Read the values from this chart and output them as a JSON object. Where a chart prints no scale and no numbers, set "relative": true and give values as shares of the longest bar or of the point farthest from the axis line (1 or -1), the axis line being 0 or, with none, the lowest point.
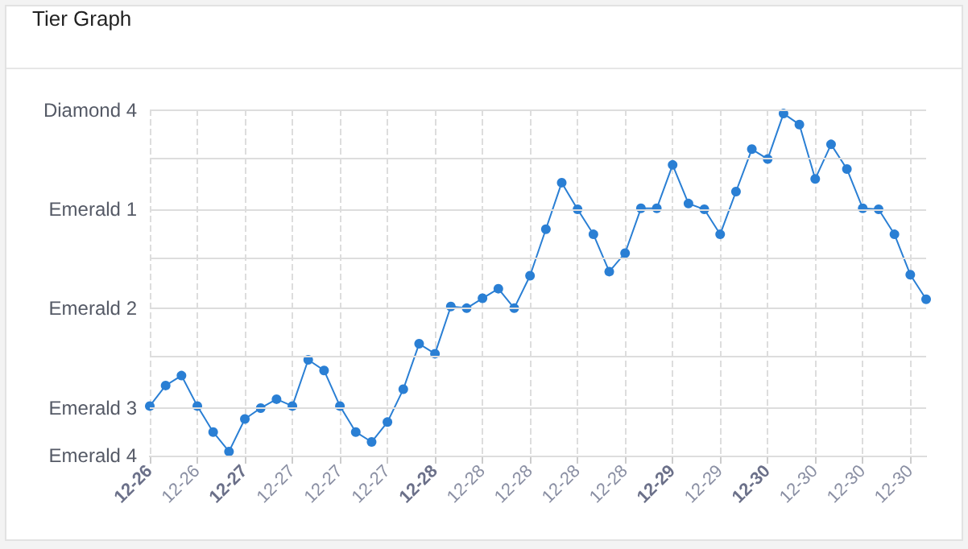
{
  "chart_data": {
    "type": "line",
    "title": "Tier Graph",
    "relative": true,
    "categories": [
      "12-26",
      null,
      null,
      "12-26",
      null,
      null,
      "12-27",
      null,
      null,
      "12-27",
      null,
      null,
      "12-27",
      null,
      null,
      "12-27",
      null,
      null,
      "12-28",
      null,
      null,
      "12-28",
      null,
      null,
      "12-28",
      null,
      null,
      "12-28",
      null,
      null,
      "12-28",
      null,
      null,
      "12-29",
      null,
      null,
      "12-29",
      null,
      null,
      "12-30",
      null,
      null,
      "12-30",
      null,
      null,
      "12-30",
      null,
      null,
      "12-30",
      null
    ],
    "series": [
      {
        "color": "#2a7fd4",
        "values": [
          0.145,
          0.205,
          0.234,
          0.145,
          0.069,
          0.012,
          0.107,
          0.139,
          0.165,
          0.145,
          0.28,
          0.249,
          0.145,
          0.069,
          0.04,
          0.098,
          0.194,
          0.327,
          0.298,
          0.436,
          0.431,
          0.46,
          0.488,
          0.431,
          0.526,
          0.662,
          0.798,
          0.72,
          0.647,
          0.538,
          0.592,
          0.723,
          0.723,
          0.85,
          0.737,
          0.72,
          0.647,
          0.772,
          0.896,
          0.867,
          1,
          0.968,
          0.809,
          0.91,
          0.838,
          0.723,
          0.72,
          0.647,
          0.529,
          0.457
        ]
      }
    ],
    "ref_lines": [
      {
        "axis": "y",
        "value": 0,
        "label": "Emerald 4"
      },
      {
        "axis": "y",
        "value": 0.145,
        "label": "Emerald 3"
      },
      {
        "axis": "y",
        "value": 0.289
      },
      {
        "axis": "y",
        "value": 0.434,
        "label": "Emerald 2"
      },
      {
        "axis": "y",
        "value": 0.578
      },
      {
        "axis": "y",
        "value": 0.723,
        "label": "Emerald 1"
      },
      {
        "axis": "y",
        "value": 0.867
      },
      {
        "axis": "y",
        "value": 1.012,
        "label": "Diamond 4"
      }
    ],
    "grid": "x",
    "marker": "circle",
    "line_style": "solid"
  }
}
